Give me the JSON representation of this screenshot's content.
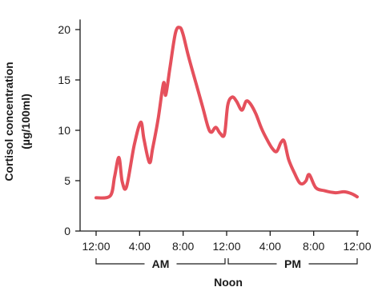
{
  "chart_data": {
    "type": "line",
    "ylabel_lines": [
      "Cortisol concentration",
      "(µg/100ml)"
    ],
    "xlabel": "Noon",
    "x_tick_labels": [
      "12:00",
      "4:00",
      "8:00",
      "12:00",
      "4:00",
      "8:00",
      "12:00"
    ],
    "y_ticks": [
      0,
      5,
      10,
      15,
      20
    ],
    "ylim": [
      0,
      21
    ],
    "xlim_hours": [
      0,
      24
    ],
    "period_brackets": [
      {
        "label": "AM",
        "from_hour": 0,
        "to_hour": 12
      },
      {
        "label": "PM",
        "from_hour": 12,
        "to_hour": 24
      }
    ],
    "line_color": "#e5505c",
    "series": [
      {
        "x_hours": [
          0,
          1.3,
          1.7,
          2.1,
          2.4,
          2.8,
          3.5,
          4.1,
          4.4,
          4.9,
          5.2,
          5.7,
          6.2,
          6.4,
          6.8,
          7.3,
          7.7,
          8.0,
          8.5,
          9.2,
          9.8,
          10.3,
          10.6,
          11.0,
          11.4,
          11.8,
          12.1,
          12.5,
          12.9,
          13.4,
          13.8,
          14.2,
          14.7,
          15.2,
          15.7,
          16.2,
          16.6,
          17.0,
          17.3,
          17.7,
          18.3,
          18.7,
          19.0,
          19.3,
          19.6,
          20.2,
          21.0,
          22.0,
          22.8,
          23.5,
          24.0
        ],
        "values": [
          3.3,
          3.5,
          5.4,
          7.3,
          4.9,
          4.4,
          8.5,
          10.8,
          9.1,
          6.8,
          8.2,
          11.1,
          14.7,
          13.5,
          16.3,
          19.7,
          20.2,
          19.5,
          17.3,
          14.6,
          12.3,
          10.3,
          9.8,
          10.3,
          9.7,
          9.6,
          12.5,
          13.3,
          12.9,
          12.0,
          12.9,
          12.6,
          11.6,
          10.2,
          9.1,
          8.2,
          7.9,
          8.8,
          8.9,
          7.1,
          5.6,
          4.8,
          4.7,
          5.0,
          5.6,
          4.3,
          4.0,
          3.8,
          3.9,
          3.7,
          3.4
        ]
      }
    ]
  }
}
